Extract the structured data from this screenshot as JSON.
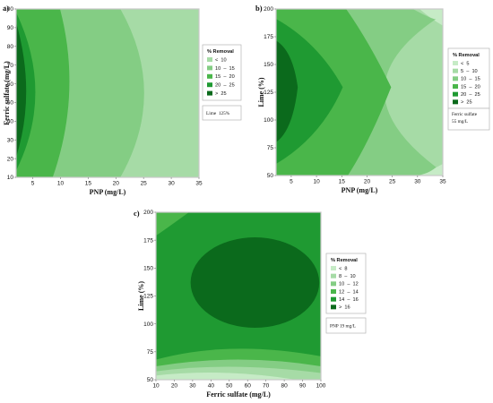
{
  "chart_data": [
    {
      "type": "contour",
      "panel_label": "a)",
      "xlabel": "PNP (mg/L)",
      "ylabel": "Ferric sulfate (mg/L)",
      "xlim": [
        2,
        35
      ],
      "ylim": [
        10,
        100
      ],
      "xticks": [
        5,
        10,
        15,
        20,
        25,
        30,
        35
      ],
      "yticks": [
        10,
        20,
        30,
        40,
        50,
        60,
        70,
        80,
        90,
        100
      ],
      "legend_title": "% Removal",
      "legend": [
        {
          "label": "<  10",
          "color": "#a6dba6"
        },
        {
          "label": "10  –  15",
          "color": "#84cd84"
        },
        {
          "label": "15  –  20",
          "color": "#4ab64a"
        },
        {
          "label": "20  –  25",
          "color": "#1f9a32"
        },
        {
          "label": ">  25",
          "color": "#0b6a1c"
        }
      ],
      "hold": "Lime  125%"
    },
    {
      "type": "contour",
      "panel_label": "b)",
      "xlabel": "PNP (mg/L)",
      "ylabel": "Lime (%)",
      "xlim": [
        2,
        35
      ],
      "ylim": [
        50,
        200
      ],
      "xticks": [
        5,
        10,
        15,
        20,
        25,
        30,
        35
      ],
      "yticks": [
        50,
        75,
        100,
        125,
        150,
        175,
        200
      ],
      "legend_title": "% Removal",
      "legend": [
        {
          "label": "<  5",
          "color": "#c6ebc6"
        },
        {
          "label": "5  –  10",
          "color": "#a6dba6"
        },
        {
          "label": "10  –  15",
          "color": "#84cd84"
        },
        {
          "label": "15  –  20",
          "color": "#4ab64a"
        },
        {
          "label": "20  –  25",
          "color": "#1f9a32"
        },
        {
          "label": ">  25",
          "color": "#0b6a1c"
        }
      ],
      "hold": "Ferric sulfate\n55 mg/L"
    },
    {
      "type": "contour",
      "panel_label": "c)",
      "xlabel": "Ferric sulfate (mg/L)",
      "ylabel": "Lime (%)",
      "xlim": [
        10,
        100
      ],
      "ylim": [
        50,
        200
      ],
      "xticks": [
        10,
        20,
        30,
        40,
        50,
        60,
        70,
        80,
        90,
        100
      ],
      "yticks": [
        50,
        75,
        100,
        125,
        150,
        175,
        200
      ],
      "legend_title": "% Removal",
      "legend": [
        {
          "label": "<  8",
          "color": "#c6ebc6"
        },
        {
          "label": "8  –  10",
          "color": "#a6dba6"
        },
        {
          "label": "10  –  12",
          "color": "#84cd84"
        },
        {
          "label": "12  –  14",
          "color": "#4ab64a"
        },
        {
          "label": "14  –  16",
          "color": "#1f9a32"
        },
        {
          "label": ">  16",
          "color": "#0b6a1c"
        }
      ],
      "hold": "PNP 19 mg/L"
    }
  ]
}
